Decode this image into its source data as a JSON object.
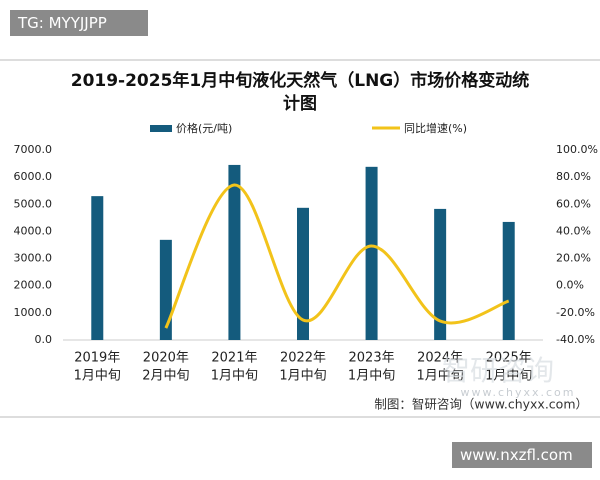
{
  "overlay": {
    "top_left": "TG: MYYJJPP",
    "bottom_right": "www.nxzfl.com"
  },
  "chart_data": {
    "type": "bar-line",
    "title": "2019-2025年1月中旬液化天然气（LNG）市场价格变动统计图",
    "categories": [
      [
        "2019年",
        "1月中旬"
      ],
      [
        "2020年",
        "2月中旬"
      ],
      [
        "2021年",
        "1月中旬"
      ],
      [
        "2022年",
        "1月中旬"
      ],
      [
        "2023年",
        "1月中旬"
      ],
      [
        "2024年",
        "1月中旬"
      ],
      [
        "2025年",
        "1月中旬"
      ]
    ],
    "series": [
      {
        "name": "价格(元/吨)",
        "color": "#145b7d",
        "type": "bar",
        "values": [
          5300,
          3690,
          6450,
          4870,
          6380,
          4830,
          4350
        ]
      },
      {
        "name": "同比增速(%)",
        "color": "#f2c31a",
        "type": "line",
        "axis": "y2",
        "values": [
          null,
          -31.2,
          74.2,
          -25.3,
          29.3,
          -26.0,
          -11.3
        ]
      }
    ],
    "ylim": [
      0,
      7000
    ],
    "yticks": [
      {
        "value": 0,
        "label": "0.0"
      },
      {
        "value": 1000,
        "label": "1000.0"
      },
      {
        "value": 2000,
        "label": "2000.0"
      },
      {
        "value": 3000,
        "label": "3000.0"
      },
      {
        "value": 4000,
        "label": "4000.0"
      },
      {
        "value": 5000,
        "label": "5000.0"
      },
      {
        "value": 6000,
        "label": "6000.0"
      },
      {
        "value": 7000,
        "label": "7000.0"
      }
    ],
    "y2lim": [
      -40,
      100
    ],
    "y2ticks": [
      {
        "value": -40,
        "label": "-40.0%"
      },
      {
        "value": -20,
        "label": "-20.0%"
      },
      {
        "value": 0,
        "label": "0.0%"
      },
      {
        "value": 20,
        "label": "20.0%"
      },
      {
        "value": 40,
        "label": "40.0%"
      },
      {
        "value": 60,
        "label": "60.0%"
      },
      {
        "value": 80,
        "label": "80.0%"
      },
      {
        "value": 100,
        "label": "100.0%"
      }
    ],
    "grid": false,
    "source": "制图：智研咨询（www.chyxx.com）",
    "watermark": [
      "智研咨询",
      "www.chyxx.com"
    ]
  }
}
